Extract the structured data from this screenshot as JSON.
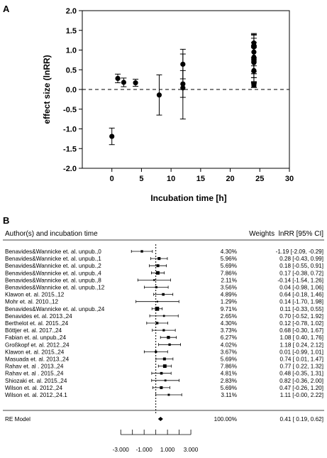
{
  "chart_data": [
    {
      "panel_label": "A",
      "type": "scatter",
      "xlabel": "Incubation time [h]",
      "ylabel": "effect size (lnRR)",
      "xlim": [
        -5,
        30
      ],
      "ylim": [
        -2.0,
        2.0
      ],
      "xticks": [
        0,
        5,
        10,
        15,
        20,
        25,
        30
      ],
      "yticks": [
        -2.0,
        -1.5,
        -1.0,
        -0.5,
        0.0,
        0.5,
        1.0,
        1.5,
        2.0
      ],
      "xtick_labels": [
        "0",
        "5",
        "10",
        "15",
        "20",
        "25",
        "30"
      ],
      "ytick_labels": [
        "-2.0",
        "-1.5",
        "-1.0",
        "-0.5",
        "0.0",
        "0.5",
        "1.0",
        "1.5",
        "2.0"
      ],
      "reference_line": 0,
      "points": [
        {
          "x": 0,
          "y": -1.19,
          "lo": -1.4,
          "hi": -0.98
        },
        {
          "x": 1,
          "y": 0.28,
          "lo": 0.17,
          "hi": 0.39
        },
        {
          "x": 2,
          "y": 0.18,
          "lo": 0.07,
          "hi": 0.29
        },
        {
          "x": 4,
          "y": 0.17,
          "lo": 0.08,
          "hi": 0.26
        },
        {
          "x": 8,
          "y": -0.14,
          "lo": -0.65,
          "hi": 0.37
        },
        {
          "x": 12,
          "y": 0.04,
          "lo": -0.75,
          "hi": 0.9
        },
        {
          "x": 12,
          "y": 0.64,
          "lo": 0.27,
          "hi": 1.02
        },
        {
          "x": 12,
          "y": 0.14,
          "lo": -0.2,
          "hi": 0.48
        },
        {
          "x": 24,
          "y": 0.11,
          "lo": 0.05,
          "hi": 0.17
        },
        {
          "x": 24,
          "y": 0.7,
          "lo": 0.3,
          "hi": 1.1
        },
        {
          "x": 24,
          "y": 0.12,
          "lo": 0.06,
          "hi": 0.18
        },
        {
          "x": 24,
          "y": 0.68,
          "lo": 0.3,
          "hi": 1.06
        },
        {
          "x": 24,
          "y": 1.08,
          "lo": 0.7,
          "hi": 1.38
        },
        {
          "x": 24,
          "y": 1.18,
          "lo": 0.8,
          "hi": 1.42
        },
        {
          "x": 24,
          "y": 0.74,
          "lo": 0.4,
          "hi": 1.08
        },
        {
          "x": 24,
          "y": 0.77,
          "lo": 0.4,
          "hi": 1.12
        },
        {
          "x": 24,
          "y": 0.48,
          "lo": 0.2,
          "hi": 0.8
        },
        {
          "x": 24,
          "y": 0.82,
          "lo": 0.45,
          "hi": 1.2
        },
        {
          "x": 24,
          "y": 0.47,
          "lo": 0.15,
          "hi": 0.8
        },
        {
          "x": 24,
          "y": 1.11,
          "lo": 0.75,
          "hi": 1.4
        },
        {
          "x": 24,
          "y": 0.95,
          "lo": 0.6,
          "hi": 1.3
        }
      ]
    },
    {
      "panel_label": "B",
      "type": "forest",
      "header_left": "Author(s) and incubation time",
      "header_right": "Weights  lnRR [95% CI]",
      "xlim": [
        -3.5,
        5
      ],
      "xticks": [
        -3,
        -1,
        1,
        3
      ],
      "xtick_labels": [
        "-3.000",
        "-1.000",
        "1.000",
        "3.000"
      ],
      "reference_line": 0,
      "rows": [
        {
          "label": "Benavides&Wannicke et. al. unpub.,0",
          "weight": "4.30%",
          "est_text": "-1.19 [-2.09, -0.29]",
          "est": -1.19,
          "lo": -2.09,
          "hi": -0.29
        },
        {
          "label": "Benavides&Wannicke et. al. unpub.,1",
          "weight": "5.96%",
          "est_text": "0.28 [-0.43, 0.99]",
          "est": 0.28,
          "lo": -0.43,
          "hi": 0.99
        },
        {
          "label": "Benavides&Wannicke et. al. unpub.,2",
          "weight": "5.69%",
          "est_text": "0.18 [-0.55, 0.91]",
          "est": 0.18,
          "lo": -0.55,
          "hi": 0.91
        },
        {
          "label": "Benavides&Wannicke et. al. unpub.,4",
          "weight": "7.86%",
          "est_text": "0.17 [-0.38, 0.72]",
          "est": 0.17,
          "lo": -0.38,
          "hi": 0.72
        },
        {
          "label": "Benavides&Wannicke et. al. unpub.,8",
          "weight": "2.11%",
          "est_text": "-0.14 [-1.54, 1.26]",
          "est": -0.14,
          "lo": -1.54,
          "hi": 1.26
        },
        {
          "label": "Benavides&Wannicke et. al. unpub.,12",
          "weight": "3.56%",
          "est_text": "0.04 [-0.98, 1.06]",
          "est": 0.04,
          "lo": -0.98,
          "hi": 1.06
        },
        {
          "label": "Klawon et. al. 2015.,12",
          "weight": "4.89%",
          "est_text": "0.64 [-0.18, 1.46]",
          "est": 0.64,
          "lo": -0.18,
          "hi": 1.46
        },
        {
          "label": "Mohr et. al. 2010.,12",
          "weight": "1.29%",
          "est_text": "0.14 [-1.70, 1.98]",
          "est": 0.14,
          "lo": -1.7,
          "hi": 1.98
        },
        {
          "label": "Benavides&Wannicke et. al. unpub.,24",
          "weight": "9.71%",
          "est_text": "0.11 [-0.33, 0.55]",
          "est": 0.11,
          "lo": -0.33,
          "hi": 0.55
        },
        {
          "label": "Benavides et. al. 2013.,24",
          "weight": "2.65%",
          "est_text": "0.70 [-0.52, 1.92]",
          "est": 0.7,
          "lo": -0.52,
          "hi": 1.92
        },
        {
          "label": "Berthelot et. al. 2015.,24",
          "weight": "4.30%",
          "est_text": "0.12 [-0.78, 1.02]",
          "est": 0.12,
          "lo": -0.78,
          "hi": 1.02
        },
        {
          "label": "Böttjer et. al. 2017.,24",
          "weight": "3.73%",
          "est_text": "0.68 [-0.30, 1.67]",
          "est": 0.68,
          "lo": -0.3,
          "hi": 1.67
        },
        {
          "label": "Fabian et. al. unpub.,24",
          "weight": "6.27%",
          "est_text": "1.08 [ 0.40, 1.76]",
          "est": 1.08,
          "lo": 0.4,
          "hi": 1.76
        },
        {
          "label": "Großkopf et. al.  2012.,24",
          "weight": "4.02%",
          "est_text": "1.18 [ 0.24, 2.12]",
          "est": 1.18,
          "lo": 0.24,
          "hi": 2.12
        },
        {
          "label": "Klawon et. al. 2015.,24",
          "weight": "3.67%",
          "est_text": "0.01 [-0.99, 1.01]",
          "est": 0.01,
          "lo": -0.99,
          "hi": 1.01
        },
        {
          "label": "Masuada et. al. 2013.,24",
          "weight": "5.69%",
          "est_text": "0.74 [ 0.01, 1.47]",
          "est": 0.74,
          "lo": 0.01,
          "hi": 1.47
        },
        {
          "label": "Rahav et. al . 2013.,24",
          "weight": "7.86%",
          "est_text": "0.77 [ 0.22, 1.32]",
          "est": 0.77,
          "lo": 0.22,
          "hi": 1.32
        },
        {
          "label": "Rahav et. al . 2015.,24",
          "weight": "4.81%",
          "est_text": "0.48 [-0.35, 1.31]",
          "est": 0.48,
          "lo": -0.35,
          "hi": 1.31
        },
        {
          "label": "Shiozaki et. al.  2015.,24",
          "weight": "2.83%",
          "est_text": "0.82 [-0.36, 2.00]",
          "est": 0.82,
          "lo": -0.36,
          "hi": 2.0
        },
        {
          "label": "Wilson et. al. 2012.,24",
          "weight": "5.69%",
          "est_text": "0.47 [-0.26, 1.20]",
          "est": 0.47,
          "lo": -0.26,
          "hi": 1.2
        },
        {
          "label": "Wilson et. al. 2012.,24.1",
          "weight": "3.11%",
          "est_text": "1.11 [-0.00, 2.22]",
          "est": 1.11,
          "lo": 0.0,
          "hi": 2.22
        }
      ],
      "summary": {
        "label": "RE Model",
        "weight": "100.00%",
        "est_text": "0.41 [ 0.19, 0.62]",
        "est": 0.41,
        "lo": 0.19,
        "hi": 0.62
      }
    }
  ]
}
